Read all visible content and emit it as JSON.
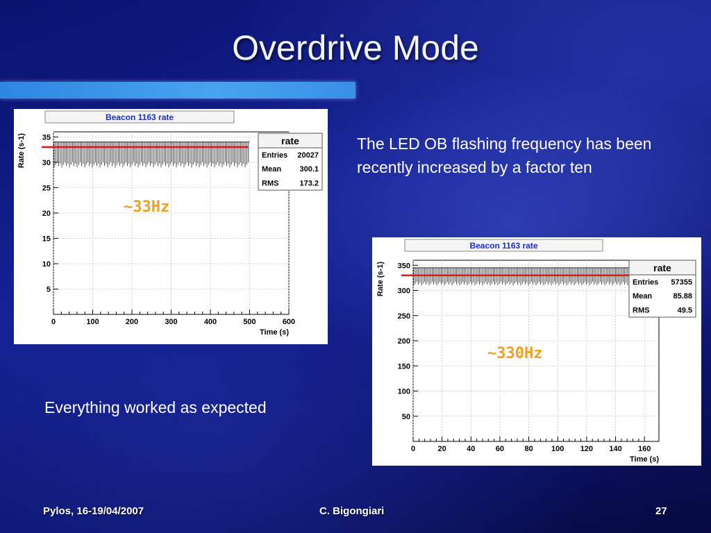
{
  "slide": {
    "title": "Overdrive Mode",
    "text1": "The LED OB flashing frequency has been recently increased by a factor ten",
    "text2": "Everything worked as expected",
    "footer": {
      "left": "Pylos, 16-19/04/2007",
      "center": "C. Bigongiari",
      "right": "27"
    }
  },
  "chart_data": [
    {
      "type": "histogram",
      "title": "Beacon 1163 rate",
      "xlabel": "Time (s)",
      "ylabel": "Rate (s-1)",
      "xlim": [
        0,
        600
      ],
      "ylim": [
        0,
        36
      ],
      "x_ticks": [
        0,
        100,
        200,
        300,
        400,
        500,
        600
      ],
      "y_ticks": [
        5,
        10,
        15,
        20,
        25,
        30,
        35
      ],
      "signal": {
        "x_range": [
          0,
          500
        ],
        "low": 29,
        "high": 34
      },
      "reference_line_y": 33,
      "annotation": "~33Hz",
      "stats": {
        "name": "rate",
        "rows": [
          {
            "label": "Entries",
            "value": "20027"
          },
          {
            "label": "Mean",
            "value": "300.1"
          },
          {
            "label": "RMS",
            "value": "173.2"
          }
        ]
      },
      "grid": true
    },
    {
      "type": "histogram",
      "title": "Beacon 1163 rate",
      "xlabel": "Time (s)",
      "ylabel": "Rate (s-1)",
      "xlim": [
        0,
        170
      ],
      "ylim": [
        0,
        360
      ],
      "x_ticks": [
        0,
        20,
        40,
        60,
        80,
        100,
        120,
        140,
        160
      ],
      "y_ticks": [
        50,
        100,
        150,
        200,
        250,
        300,
        350
      ],
      "signal": {
        "x_range": [
          0,
          170
        ],
        "low": 310,
        "high": 345
      },
      "reference_line_y": 330,
      "annotation": "~330Hz",
      "stats": {
        "name": "rate",
        "rows": [
          {
            "label": "Entries",
            "value": "57355"
          },
          {
            "label": "Mean",
            "value": "85.88"
          },
          {
            "label": "RMS",
            "value": "49.5"
          }
        ]
      },
      "grid": true
    }
  ]
}
